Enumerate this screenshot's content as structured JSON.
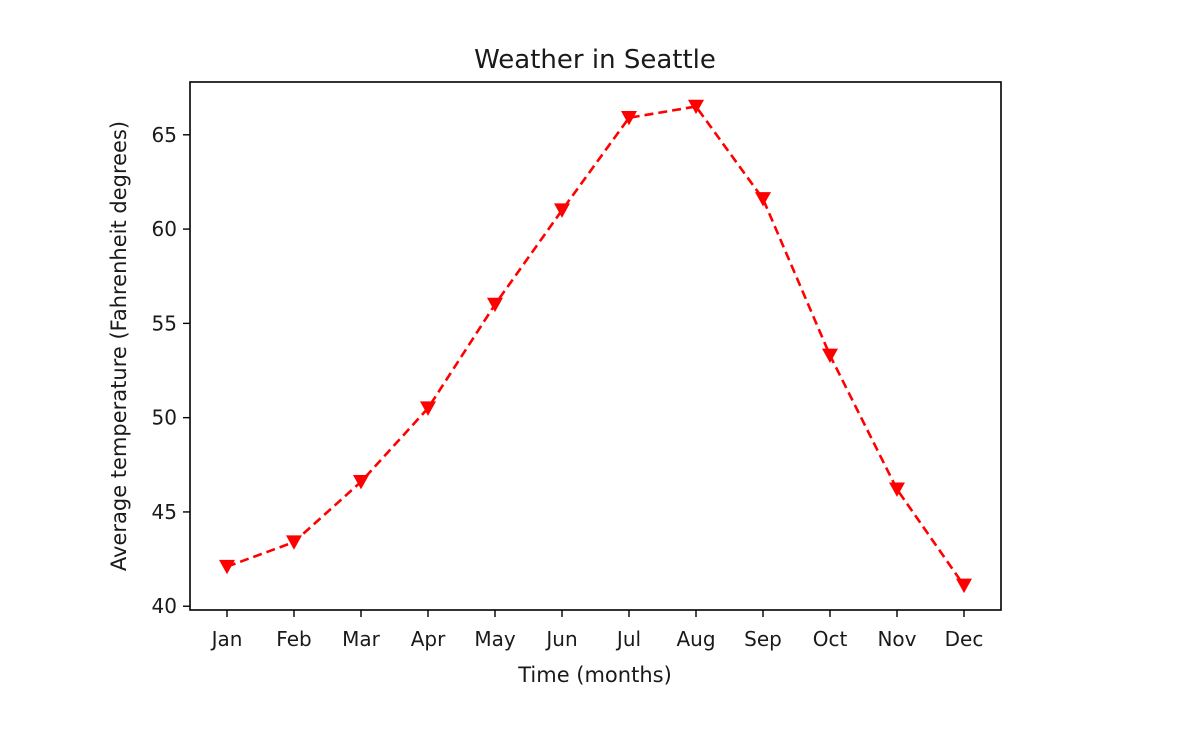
{
  "chart_data": {
    "type": "line",
    "title": "Weather in Seattle",
    "xlabel": "Time (months)",
    "ylabel": "Average temperature (Fahrenheit degrees)",
    "categories": [
      "Jan",
      "Feb",
      "Mar",
      "Apr",
      "May",
      "Jun",
      "Jul",
      "Aug",
      "Sep",
      "Oct",
      "Nov",
      "Dec"
    ],
    "series": [
      {
        "values": [
          42.1,
          43.4,
          46.6,
          50.5,
          56.0,
          61.0,
          65.9,
          66.5,
          61.6,
          53.3,
          46.2,
          41.1
        ],
        "color": "#ff0000",
        "marker": "triangle-down",
        "linestyle": "dashed"
      }
    ],
    "ylim": [
      39.8,
      67.8
    ],
    "yticks": [
      40,
      45,
      50,
      55,
      60,
      65
    ],
    "grid": false,
    "legend": "none"
  }
}
